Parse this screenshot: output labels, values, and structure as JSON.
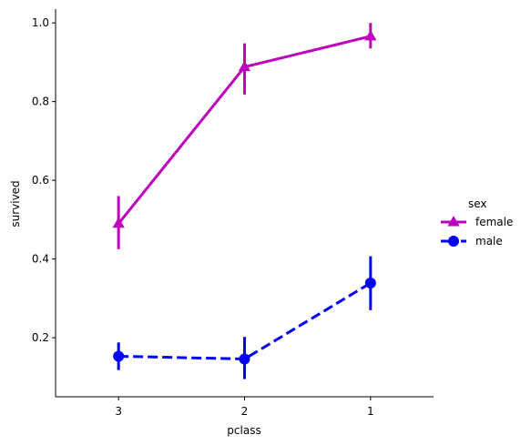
{
  "chart_data": {
    "type": "line",
    "title": "",
    "xlabel": "pclass",
    "ylabel": "survived",
    "categories": [
      "3",
      "2",
      "1"
    ],
    "ylim": [
      0.05,
      1.035
    ],
    "yticks": [
      0.2,
      0.4,
      0.6,
      0.8,
      1.0
    ],
    "ytick_labels": [
      "0.2",
      "0.4",
      "0.6",
      "0.8",
      "1.0"
    ],
    "grid": false,
    "legend": {
      "title": "sex",
      "placement": "center-right"
    },
    "series": [
      {
        "name": "female",
        "color": "#bf00bf",
        "marker": "triangle",
        "linestyle": "solid",
        "values": [
          0.49,
          0.888,
          0.966
        ],
        "ci_low": [
          0.425,
          0.818,
          0.935
        ],
        "ci_high": [
          0.56,
          0.948,
          1.0
        ]
      },
      {
        "name": "male",
        "color": "#0000ff",
        "marker": "circle",
        "linestyle": "dashed",
        "values": [
          0.153,
          0.146,
          0.339
        ],
        "ci_low": [
          0.118,
          0.095,
          0.27
        ],
        "ci_high": [
          0.188,
          0.202,
          0.407
        ]
      }
    ]
  }
}
